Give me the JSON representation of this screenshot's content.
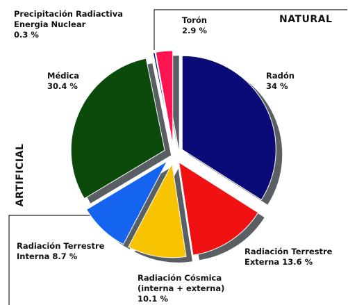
{
  "chart_data": {
    "type": "pie",
    "categories": [
      "Radón",
      "Radiación Terrestre Externa",
      "Radiación Cósmica (interna + externa)",
      "Radiación Terrestre Interna",
      "Médica",
      "Precipitación Radiactiva Energia Nuclear",
      "Torón"
    ],
    "values": [
      34,
      13.6,
      10.1,
      8.7,
      30.4,
      0.3,
      2.9
    ],
    "value_labels": [
      "34 %",
      "13.6 %",
      "10.1 %",
      "8.7 %",
      "30.4 %",
      "0.3 %",
      "2.9 %"
    ],
    "colors": [
      "#0b0b78",
      "#f01212",
      "#f8c400",
      "#1464f0",
      "#0b4a0b",
      "#0b0b78",
      "#ff1450"
    ],
    "annotations": [
      "NATURAL",
      "ARTIFICIAL"
    ]
  }
}
